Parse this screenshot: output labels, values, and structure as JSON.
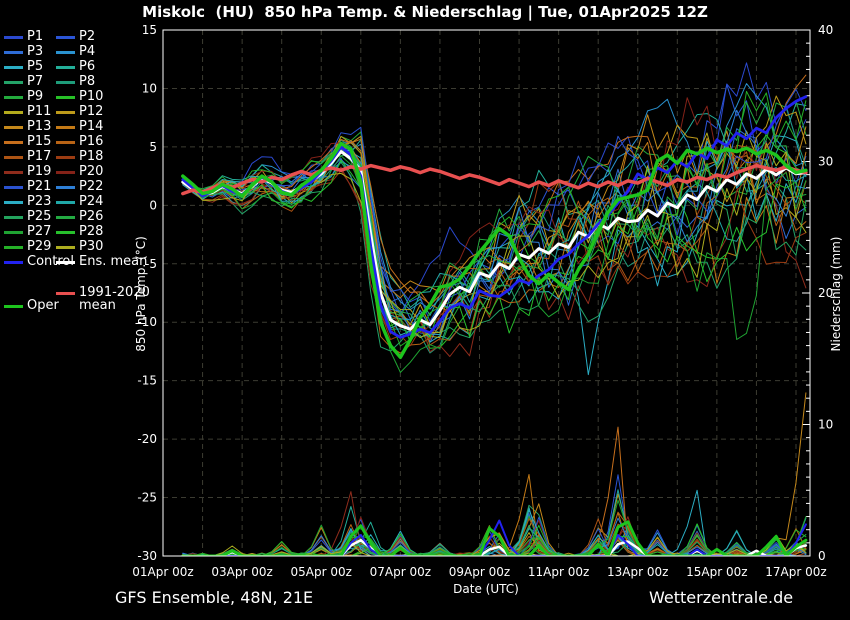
{
  "title": "Miskolc  (HU)  850 hPa Temp. & Niederschlag | Tue, 01Apr2025 12Z",
  "footer": {
    "left": "GFS Ensemble, 48N, 21E",
    "right": "Wetterzentrale.de"
  },
  "colors": {
    "background": "#000000",
    "frame": "#ffffff",
    "grid": "#3c3c32",
    "text": "#ffffff",
    "ens_mean": "#ffffff",
    "control": "#2222f0",
    "climate": "#e85050",
    "oper": "#1dc41d"
  },
  "legend": {
    "members": [
      {
        "label": "P1",
        "color": "#2b49cf"
      },
      {
        "label": "P2",
        "color": "#2b55d6"
      },
      {
        "label": "P3",
        "color": "#2e6cd6"
      },
      {
        "label": "P4",
        "color": "#2a92cf"
      },
      {
        "label": "P5",
        "color": "#2badc4"
      },
      {
        "label": "P6",
        "color": "#23af99"
      },
      {
        "label": "P7",
        "color": "#23a368"
      },
      {
        "label": "P8",
        "color": "#1e9c7a"
      },
      {
        "label": "P9",
        "color": "#23aa3d"
      },
      {
        "label": "P10",
        "color": "#27c027"
      },
      {
        "label": "P11",
        "color": "#b3ab1c"
      },
      {
        "label": "P12",
        "color": "#bd9a1a"
      },
      {
        "label": "P13",
        "color": "#c4881b"
      },
      {
        "label": "P14",
        "color": "#c47a16"
      },
      {
        "label": "P15",
        "color": "#c76f1c"
      },
      {
        "label": "P16",
        "color": "#b86315"
      },
      {
        "label": "P17",
        "color": "#ad5414"
      },
      {
        "label": "P18",
        "color": "#9c3c12"
      },
      {
        "label": "P19",
        "color": "#8f2c1c"
      },
      {
        "label": "P20",
        "color": "#842218"
      },
      {
        "label": "P21",
        "color": "#2b52cf"
      },
      {
        "label": "P22",
        "color": "#2e7fd6"
      },
      {
        "label": "P23",
        "color": "#2badc4"
      },
      {
        "label": "P24",
        "color": "#20a8a8"
      },
      {
        "label": "P25",
        "color": "#23a35d"
      },
      {
        "label": "P26",
        "color": "#23aa42"
      },
      {
        "label": "P27",
        "color": "#1fa332"
      },
      {
        "label": "P28",
        "color": "#27c02c"
      },
      {
        "label": "P29",
        "color": "#25b027"
      },
      {
        "label": "P30",
        "color": "#adad1f"
      }
    ],
    "control_label": "Control",
    "ens_mean_label": "Ens. mean",
    "climate_label_line1": "1991-2020",
    "climate_label_line2": "mean",
    "oper_label": "Oper"
  },
  "axes": {
    "left": {
      "label": "850 hPa Temp. (°C)",
      "ticks": [
        15,
        10,
        5,
        0,
        -5,
        -10,
        -15,
        -20,
        -25,
        -30
      ],
      "range": [
        -30,
        15
      ]
    },
    "right": {
      "label": "Niederschlag (mm)",
      "ticks": [
        40,
        30,
        20,
        10,
        0
      ],
      "range": [
        0,
        40
      ]
    },
    "x": {
      "label": "Date (UTC)",
      "tick_labels": [
        "01Apr 00z",
        "03Apr 00z",
        "05Apr 00z",
        "07Apr 00z",
        "09Apr 00z",
        "11Apr 00z",
        "13Apr 00z",
        "15Apr 00z",
        "17Apr 00z"
      ],
      "tick_spacing_days": 2,
      "gridline_every_days": 1,
      "span_days": 16.35
    }
  },
  "chart_data": {
    "type": "line",
    "x_start": "01Apr2025 12Z",
    "x_step_hours": 6,
    "n_points": 64,
    "seed": 20250401,
    "temp": {
      "ens_mean": [
        2.0,
        1.4,
        0.9,
        1.1,
        1.6,
        1.3,
        1.0,
        1.6,
        2.3,
        1.9,
        1.3,
        1.1,
        1.6,
        2.1,
        2.7,
        3.6,
        4.6,
        4.0,
        3.0,
        -2.5,
        -7.5,
        -9.8,
        -10.3,
        -10.6,
        -9.8,
        -10.2,
        -9.0,
        -7.6,
        -7.0,
        -7.4,
        -5.8,
        -6.1,
        -5.0,
        -5.4,
        -4.2,
        -4.5,
        -3.7,
        -4.1,
        -3.3,
        -3.6,
        -2.3,
        -2.7,
        -1.6,
        -2.0,
        -1.1,
        -1.4,
        -1.3,
        -0.4,
        -0.9,
        0.2,
        -0.2,
        0.9,
        0.5,
        1.6,
        1.2,
        2.2,
        1.8,
        2.7,
        2.3,
        3.1,
        2.6,
        3.2,
        2.7,
        2.8
      ],
      "control": [
        2.2,
        1.5,
        0.8,
        1.2,
        1.7,
        1.2,
        0.9,
        1.7,
        2.4,
        2.0,
        1.2,
        0.9,
        1.5,
        2.0,
        2.9,
        3.8,
        5.0,
        4.3,
        2.5,
        -3.5,
        -8.5,
        -10.8,
        -11.3,
        -11.0,
        -10.6,
        -10.9,
        -9.9,
        -8.8,
        -8.4,
        -8.8,
        -7.3,
        -7.7,
        -7.8,
        -7.2,
        -6.4,
        -6.7,
        -6.0,
        -5.5,
        -4.6,
        -4.2,
        -3.3,
        -2.6,
        -1.6,
        -0.8,
        0.2,
        1.2,
        2.7,
        2.2,
        3.2,
        2.8,
        3.8,
        3.3,
        4.5,
        4.0,
        5.6,
        5.1,
        6.2,
        5.7,
        6.6,
        6.2,
        7.5,
        8.3,
        8.9,
        9.3
      ],
      "oper": [
        2.5,
        1.8,
        1.0,
        1.2,
        1.8,
        1.4,
        0.8,
        1.7,
        2.5,
        2.0,
        1.1,
        0.9,
        1.7,
        2.3,
        3.0,
        4.0,
        5.3,
        4.8,
        2.0,
        -5.0,
        -10.0,
        -12.0,
        -13.0,
        -11.5,
        -9.6,
        -8.5,
        -7.0,
        -6.8,
        -6.3,
        -5.2,
        -4.0,
        -3.0,
        -2.0,
        -2.6,
        -4.5,
        -6.0,
        -6.7,
        -5.9,
        -6.6,
        -7.2,
        -5.5,
        -4.2,
        -2.2,
        -0.6,
        0.5,
        0.7,
        0.9,
        1.3,
        3.8,
        4.3,
        3.6,
        4.7,
        4.4,
        4.9,
        4.5,
        4.8,
        4.6,
        4.9,
        4.4,
        4.7,
        4.3,
        3.4,
        2.8,
        3.0
      ],
      "climate_mean": [
        1.0,
        1.3,
        1.1,
        1.5,
        1.8,
        1.5,
        1.9,
        2.2,
        2.0,
        2.4,
        2.2,
        2.6,
        2.9,
        2.6,
        3.0,
        3.2,
        3.0,
        3.3,
        3.1,
        3.4,
        3.2,
        3.0,
        3.3,
        3.1,
        2.8,
        3.1,
        2.9,
        2.6,
        2.3,
        2.6,
        2.4,
        2.1,
        1.8,
        2.2,
        1.9,
        1.6,
        2.0,
        1.7,
        2.1,
        1.8,
        1.5,
        1.9,
        1.6,
        2.0,
        1.7,
        2.1,
        1.9,
        2.3,
        2.0,
        1.7,
        2.2,
        2.0,
        2.4,
        2.2,
        2.6,
        2.4,
        2.8,
        3.1,
        3.4,
        3.2,
        3.0,
        3.3,
        3.0,
        2.8
      ],
      "spread": [
        0.8,
        0.85,
        0.9,
        0.95,
        1.0,
        1.05,
        1.1,
        1.15,
        1.2,
        1.2,
        1.25,
        1.25,
        1.3,
        1.25,
        1.2,
        1.2,
        1.2,
        1.5,
        2.5,
        3.2,
        3.0,
        2.7,
        2.5,
        2.6,
        2.8,
        2.9,
        3.0,
        3.1,
        3.2,
        3.3,
        3.4,
        3.45,
        3.5,
        3.6,
        3.7,
        3.85,
        4.0,
        4.1,
        4.25,
        4.4,
        4.5,
        4.6,
        4.75,
        4.9,
        5.0,
        5.0,
        5.0,
        5.0,
        5.0,
        5.0,
        5.0,
        5.0,
        5.0,
        5.1,
        5.2,
        5.4,
        5.5,
        5.5,
        5.5,
        5.5,
        5.5,
        5.5,
        5.5,
        5.5
      ],
      "member_anomalies": [
        {
          "m": 4,
          "day": 10.25,
          "delta": -11.5,
          "width": 0.4
        },
        {
          "m": 26,
          "day": 14.25,
          "delta": -9.0,
          "width": 0.5
        },
        {
          "m": 13,
          "day": 13.5,
          "delta": -5.5,
          "width": 0.9
        },
        {
          "m": 11,
          "day": 15.1,
          "delta": 5.5,
          "width": 0.7
        },
        {
          "m": 3,
          "day": 12.3,
          "delta": 5.5,
          "width": 0.9
        },
        {
          "m": 17,
          "day": 8.9,
          "delta": 7.0,
          "width": 0.9
        }
      ]
    },
    "precip": {
      "ens_mean": {
        "5": 0.3,
        "17": 0.8,
        "18": 1.2,
        "19": 0.6,
        "31": 0.5,
        "32": 0.7,
        "44": 0.9,
        "45": 1.1,
        "46": 0.6,
        "52": 0.4,
        "58": 0.4,
        "62": 0.6,
        "63": 0.8
      },
      "control": {
        "17": 1.0,
        "18": 1.6,
        "19": 0.5,
        "31": 1.2,
        "32": 2.7,
        "33": 0.8,
        "44": 1.6,
        "45": 0.9,
        "52": 0.5,
        "62": 1.0,
        "63": 2.4
      },
      "oper": {
        "5": 0.4,
        "17": 1.5,
        "18": 2.3,
        "19": 1.0,
        "22": 0.6,
        "31": 2.1,
        "32": 1.5,
        "36": 0.8,
        "42": 0.9,
        "44": 2.2,
        "45": 2.6,
        "46": 1.0,
        "54": 0.5,
        "59": 0.7,
        "60": 1.5,
        "62": 0.7,
        "63": 1.2
      },
      "member_events": [
        {
          "day": 1.25,
          "max": 0.8
        },
        {
          "day": 2.5,
          "max": 2.2
        },
        {
          "day": 3.5,
          "max": 3.3
        },
        {
          "day": 4.25,
          "max": 4.9
        },
        {
          "day": 4.5,
          "max": 4.6
        },
        {
          "day": 4.75,
          "max": 3.2
        },
        {
          "day": 5.5,
          "max": 2.8
        },
        {
          "day": 6.5,
          "max": 1.4
        },
        {
          "day": 7.75,
          "max": 3.4
        },
        {
          "day": 8.0,
          "max": 3.9
        },
        {
          "day": 8.75,
          "max": 6.2
        },
        {
          "day": 9.0,
          "max": 6.5
        },
        {
          "day": 10.5,
          "max": 4.8
        },
        {
          "day": 11.0,
          "max": 9.8
        },
        {
          "day": 11.25,
          "max": 3.9
        },
        {
          "day": 12.0,
          "max": 2.2
        },
        {
          "day": 13.0,
          "max": 5.0
        },
        {
          "day": 14.0,
          "max": 2.6
        },
        {
          "day": 15.0,
          "max": 2.0
        },
        {
          "day": 15.5,
          "max": 3.0
        },
        {
          "day": 15.75,
          "max": 3.5
        }
      ],
      "member_anomalies": [
        {
          "m": 12,
          "idx": 63,
          "mm": 12.4
        },
        {
          "m": 14,
          "idx": 44,
          "mm": 9.8
        },
        {
          "m": 18,
          "idx": 17,
          "mm": 4.9
        },
        {
          "m": 4,
          "idx": 52,
          "mm": 5.0
        },
        {
          "m": 13,
          "idx": 35,
          "mm": 6.2
        }
      ]
    }
  }
}
